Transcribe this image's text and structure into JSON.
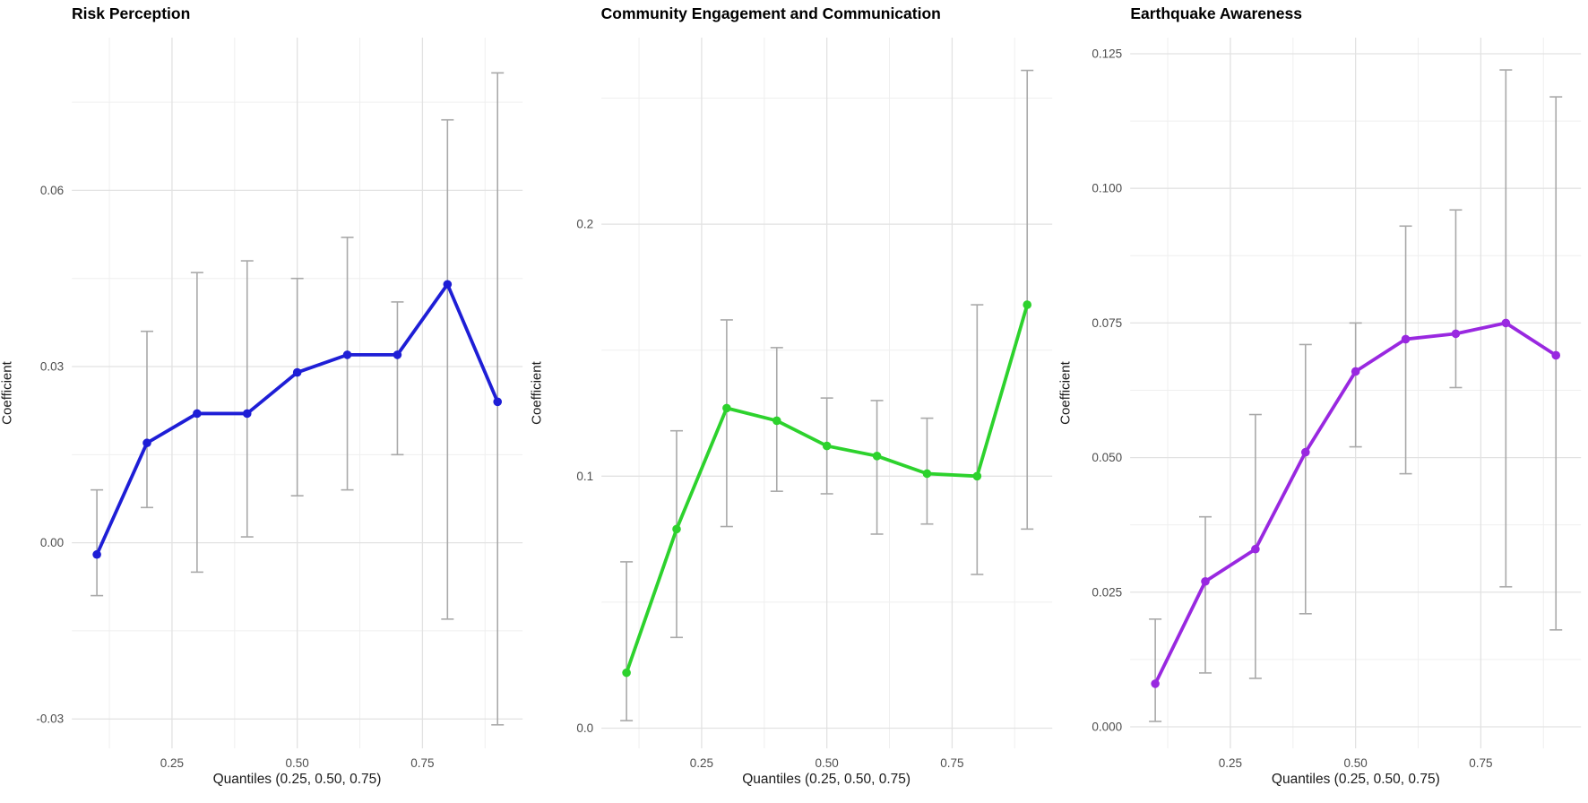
{
  "figure": {
    "background": "#ffffff",
    "grid_major_color": "#e2e2e2",
    "grid_minor_color": "#efefef",
    "tick_label_color": "#4d4d4d"
  },
  "chart_data": [
    {
      "type": "line",
      "title": "Risk Perception",
      "xlabel": "Quantiles (0.25, 0.50, 0.75)",
      "ylabel": "Coefficient",
      "line_color": "#1e1ed6",
      "point_color": "#1e1ed6",
      "error_bar_color": "#a9a9a9",
      "x": [
        0.1,
        0.2,
        0.3,
        0.4,
        0.5,
        0.6,
        0.7,
        0.8,
        0.9
      ],
      "values": [
        -0.002,
        0.017,
        0.022,
        0.022,
        0.029,
        0.032,
        0.032,
        0.044,
        0.024
      ],
      "ci_lower": [
        -0.009,
        0.006,
        -0.005,
        0.001,
        0.008,
        0.009,
        0.015,
        -0.013,
        -0.031
      ],
      "ci_upper": [
        0.009,
        0.036,
        0.046,
        0.048,
        0.045,
        0.052,
        0.041,
        0.072,
        0.08
      ],
      "xlim": [
        0.05,
        0.95
      ],
      "ylim": [
        -0.035,
        0.086
      ],
      "xticks": {
        "values": [
          0.25,
          0.5,
          0.75
        ],
        "labels": [
          "0.25",
          "0.50",
          "0.75"
        ]
      },
      "yticks": {
        "values": [
          0.06,
          0.03,
          0.0,
          -0.03
        ],
        "labels": [
          "0.06",
          "0.03",
          "0.00",
          "-0.03"
        ]
      },
      "grid": true,
      "legend": "none"
    },
    {
      "type": "line",
      "title": "Community Engagement and Communication",
      "xlabel": "Quantiles (0.25, 0.50, 0.75)",
      "ylabel": "Coefficient",
      "line_color": "#2dd22d",
      "point_color": "#2dd22d",
      "error_bar_color": "#a9a9a9",
      "x": [
        0.1,
        0.2,
        0.3,
        0.4,
        0.5,
        0.6,
        0.7,
        0.8,
        0.9
      ],
      "values": [
        0.022,
        0.079,
        0.127,
        0.122,
        0.112,
        0.108,
        0.101,
        0.1,
        0.168
      ],
      "ci_lower": [
        0.003,
        0.036,
        0.08,
        0.094,
        0.093,
        0.077,
        0.081,
        0.061,
        0.079
      ],
      "ci_upper": [
        0.066,
        0.118,
        0.162,
        0.151,
        0.131,
        0.13,
        0.123,
        0.168,
        0.261
      ],
      "xlim": [
        0.05,
        0.95
      ],
      "ylim": [
        -0.008,
        0.274
      ],
      "xticks": {
        "values": [
          0.25,
          0.5,
          0.75
        ],
        "labels": [
          "0.25",
          "0.50",
          "0.75"
        ]
      },
      "yticks": {
        "values": [
          0.2,
          0.1,
          0.0
        ],
        "labels": [
          "0.2",
          "0.1",
          "0.0"
        ]
      },
      "grid": true,
      "legend": "none"
    },
    {
      "type": "line",
      "title": "Earthquake Awareness",
      "xlabel": "Quantiles (0.25, 0.50, 0.75)",
      "ylabel": "Coefficient",
      "line_color": "#9928e0",
      "point_color": "#9928e0",
      "error_bar_color": "#a9a9a9",
      "x": [
        0.1,
        0.2,
        0.3,
        0.4,
        0.5,
        0.6,
        0.7,
        0.8,
        0.9
      ],
      "values": [
        0.008,
        0.027,
        0.033,
        0.051,
        0.066,
        0.072,
        0.073,
        0.075,
        0.069
      ],
      "ci_lower": [
        0.001,
        0.01,
        0.009,
        0.021,
        0.052,
        0.047,
        0.063,
        0.026,
        0.018
      ],
      "ci_upper": [
        0.02,
        0.039,
        0.058,
        0.071,
        0.075,
        0.093,
        0.096,
        0.122,
        0.117
      ],
      "xlim": [
        0.05,
        0.95
      ],
      "ylim": [
        -0.004,
        0.128
      ],
      "xticks": {
        "values": [
          0.25,
          0.5,
          0.75
        ],
        "labels": [
          "0.25",
          "0.50",
          "0.75"
        ]
      },
      "yticks": {
        "values": [
          0.125,
          0.1,
          0.075,
          0.05,
          0.025,
          0.0
        ],
        "labels": [
          "0.125",
          "0.100",
          "0.075",
          "0.050",
          "0.025",
          "0.000"
        ]
      },
      "grid": true,
      "legend": "none"
    }
  ]
}
